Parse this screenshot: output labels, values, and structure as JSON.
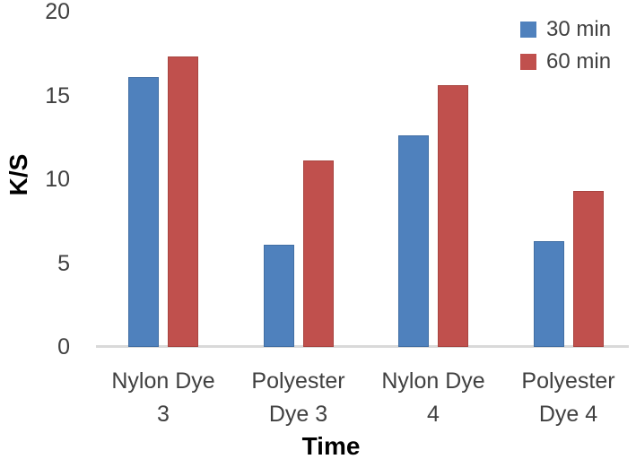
{
  "figure": {
    "background": "#ffffff"
  },
  "chart_data": {
    "type": "bar",
    "title": "",
    "xlabel": "Time",
    "ylabel": "K/S",
    "categories": [
      "Nylon Dye 3",
      "Polyester Dye 3",
      "Nylon Dye 4",
      "Polyester Dye 4"
    ],
    "category_display_lines": [
      [
        "Nylon Dye",
        "3"
      ],
      [
        "Polyester",
        "Dye 3"
      ],
      [
        "Nylon Dye",
        "4"
      ],
      [
        "Polyester",
        "Dye 4"
      ]
    ],
    "series": [
      {
        "name": "30 min",
        "color": "#4f81bd",
        "border_color": "#416ea3",
        "values": [
          16.1,
          6.1,
          12.6,
          6.3
        ]
      },
      {
        "name": "60 min",
        "color": "#c0504d",
        "border_color": "#a8443f",
        "values": [
          17.3,
          11.1,
          15.6,
          9.3
        ]
      }
    ],
    "ylim": [
      0,
      20
    ],
    "yticks": [
      0,
      5,
      10,
      15,
      20
    ],
    "grid": false,
    "legend_position": "top-right",
    "axis_line_color": "#d9d9d9",
    "tick_label_color": "#404040",
    "category_label_color": "#404040",
    "axis_title_color": "#000000"
  }
}
